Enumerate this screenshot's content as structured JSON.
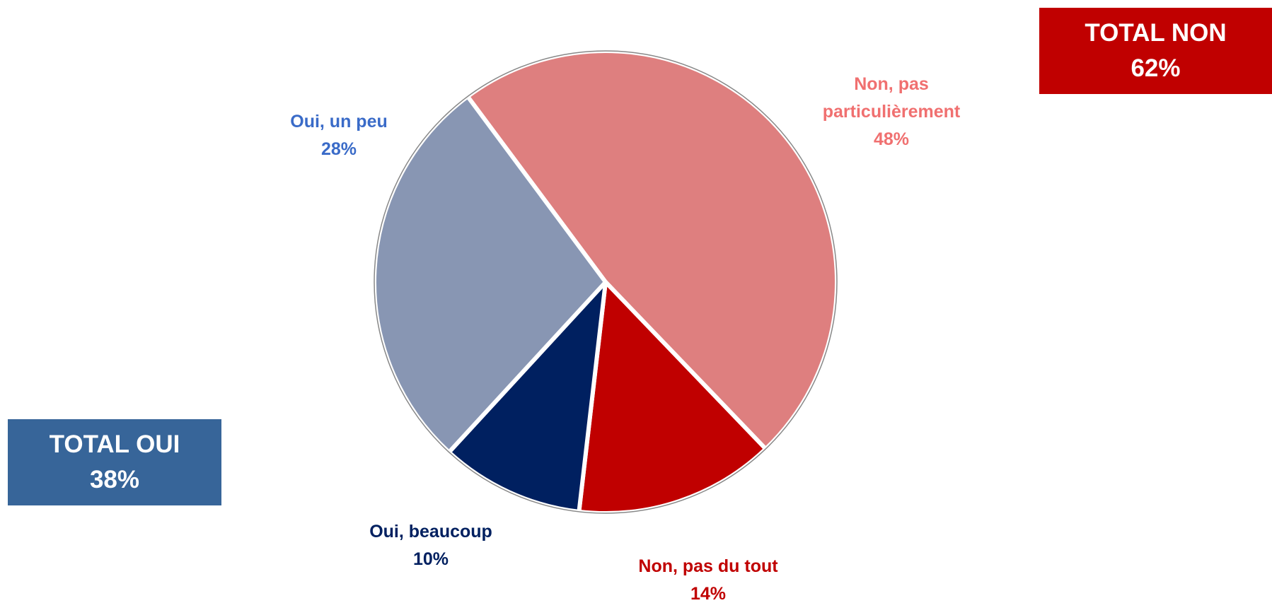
{
  "chart_data": {
    "type": "pie",
    "categories": [
      "Non, pas particulièrement",
      "Non, pas du tout",
      "Oui, beaucoup",
      "Oui, un peu"
    ],
    "values": [
      48,
      14,
      10,
      28
    ],
    "value_labels": [
      "48%",
      "14%",
      "10%",
      "28%"
    ],
    "colors": [
      "#de7f7f",
      "#c00000",
      "#002060",
      "#8896b3"
    ],
    "label_colors": [
      "#f07070",
      "#c00000",
      "#002060",
      "#3a6bc8"
    ],
    "annotations": [
      {
        "label": "TOTAL OUI",
        "value": 38,
        "value_label": "38%",
        "color": "#376599"
      },
      {
        "label": "TOTAL NON",
        "value": 62,
        "value_label": "62%",
        "color": "#c00000"
      }
    ]
  }
}
